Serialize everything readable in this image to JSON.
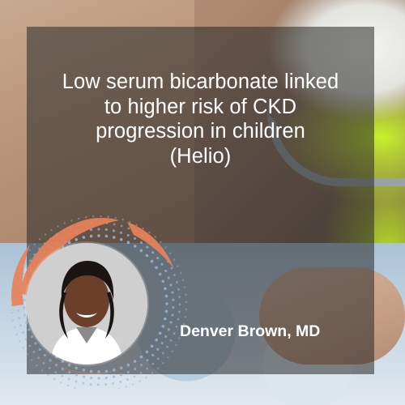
{
  "headline": {
    "lines": [
      "Low serum bicarbonate linked",
      "to higher risk of CKD",
      "progression in children",
      "(Helio)"
    ]
  },
  "author": {
    "name": "Denver Brown, MD"
  },
  "icons": {
    "avatar": "portrait-photo",
    "ring": "dotted-ring-decoration"
  },
  "colors": {
    "accent_orange": "#e8825a",
    "dot_blue": "#8fb7dd",
    "panel": "#282828",
    "text": "#ffffff",
    "highlight_green": "#c8f22a"
  }
}
